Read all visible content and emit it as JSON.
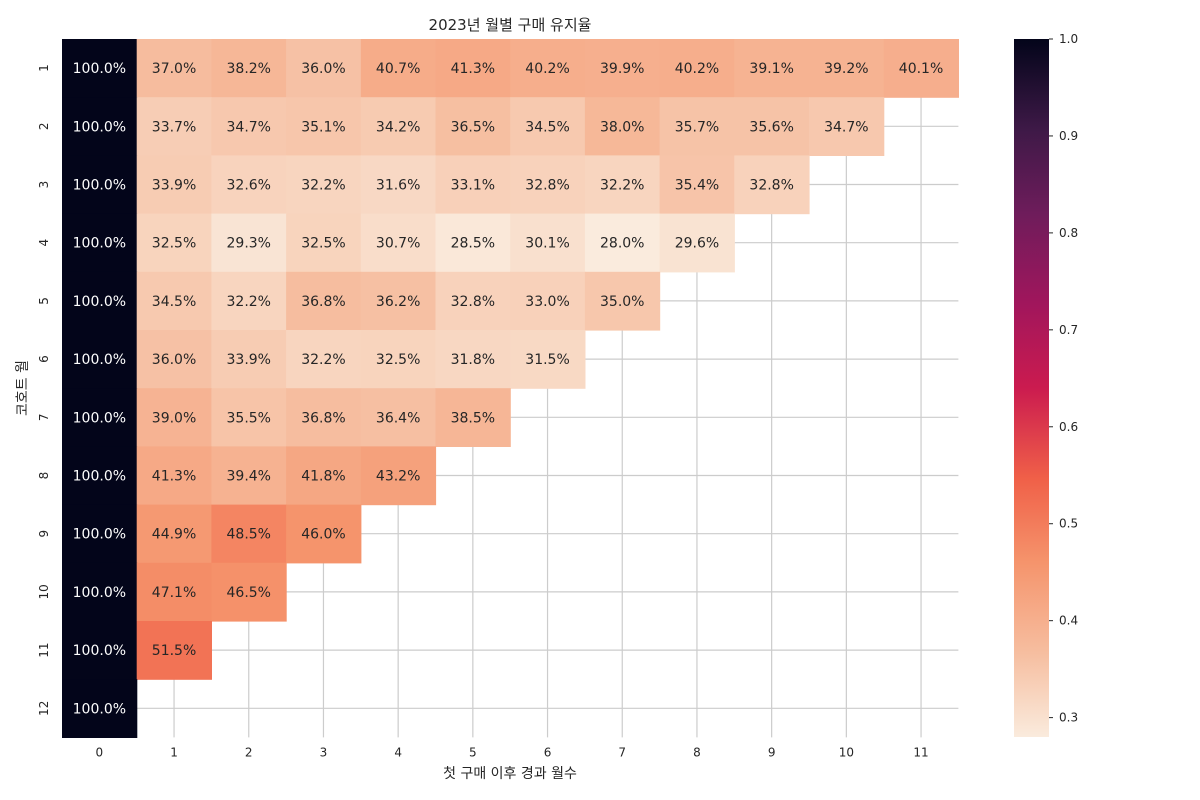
{
  "chart_data": {
    "type": "heatmap",
    "title": "2023년 월별 구매 유지율",
    "xlabel": "첫 구매 이후 경과 월수",
    "ylabel": "코호트 월",
    "x_labels": [
      "0",
      "1",
      "2",
      "3",
      "4",
      "5",
      "6",
      "7",
      "8",
      "9",
      "10",
      "11"
    ],
    "y_labels": [
      "1",
      "2",
      "3",
      "4",
      "5",
      "6",
      "7",
      "8",
      "9",
      "10",
      "11",
      "12"
    ],
    "values": [
      [
        1.0,
        0.37,
        0.382,
        0.36,
        0.407,
        0.413,
        0.402,
        0.399,
        0.402,
        0.391,
        0.392,
        0.401
      ],
      [
        1.0,
        0.337,
        0.347,
        0.351,
        0.342,
        0.365,
        0.345,
        0.38,
        0.357,
        0.356,
        0.347
      ],
      [
        1.0,
        0.339,
        0.326,
        0.322,
        0.316,
        0.331,
        0.328,
        0.322,
        0.354,
        0.328
      ],
      [
        1.0,
        0.325,
        0.293,
        0.325,
        0.307,
        0.285,
        0.301,
        0.28,
        0.296
      ],
      [
        1.0,
        0.345,
        0.322,
        0.368,
        0.362,
        0.328,
        0.33,
        0.35
      ],
      [
        1.0,
        0.36,
        0.339,
        0.322,
        0.325,
        0.318,
        0.315
      ],
      [
        1.0,
        0.39,
        0.355,
        0.368,
        0.364,
        0.385
      ],
      [
        1.0,
        0.413,
        0.394,
        0.418,
        0.432
      ],
      [
        1.0,
        0.449,
        0.485,
        0.46
      ],
      [
        1.0,
        0.471,
        0.465
      ],
      [
        1.0,
        0.515
      ],
      [
        1.0
      ]
    ],
    "cell_labels": [
      [
        "100.0%",
        "37.0%",
        "38.2%",
        "36.0%",
        "40.7%",
        "41.3%",
        "40.2%",
        "39.9%",
        "40.2%",
        "39.1%",
        "39.2%",
        "40.1%"
      ],
      [
        "100.0%",
        "33.7%",
        "34.7%",
        "35.1%",
        "34.2%",
        "36.5%",
        "34.5%",
        "38.0%",
        "35.7%",
        "35.6%",
        "34.7%"
      ],
      [
        "100.0%",
        "33.9%",
        "32.6%",
        "32.2%",
        "31.6%",
        "33.1%",
        "32.8%",
        "32.2%",
        "35.4%",
        "32.8%"
      ],
      [
        "100.0%",
        "32.5%",
        "29.3%",
        "32.5%",
        "30.7%",
        "28.5%",
        "30.1%",
        "28.0%",
        "29.6%"
      ],
      [
        "100.0%",
        "34.5%",
        "32.2%",
        "36.8%",
        "36.2%",
        "32.8%",
        "33.0%",
        "35.0%"
      ],
      [
        "100.0%",
        "36.0%",
        "33.9%",
        "32.2%",
        "32.5%",
        "31.8%",
        "31.5%"
      ],
      [
        "100.0%",
        "39.0%",
        "35.5%",
        "36.8%",
        "36.4%",
        "38.5%"
      ],
      [
        "100.0%",
        "41.3%",
        "39.4%",
        "41.8%",
        "43.2%"
      ],
      [
        "100.0%",
        "44.9%",
        "48.5%",
        "46.0%"
      ],
      [
        "100.0%",
        "47.1%",
        "46.5%"
      ],
      [
        "100.0%",
        "51.5%"
      ],
      [
        "100.0%"
      ]
    ],
    "colorbar": {
      "vmin": 0.28,
      "vmax": 1.0,
      "ticks": [
        "0.3",
        "0.4",
        "0.5",
        "0.6",
        "0.7",
        "0.8",
        "0.9",
        "1.0"
      ],
      "colormap": "rocket_r"
    },
    "grid": true
  }
}
